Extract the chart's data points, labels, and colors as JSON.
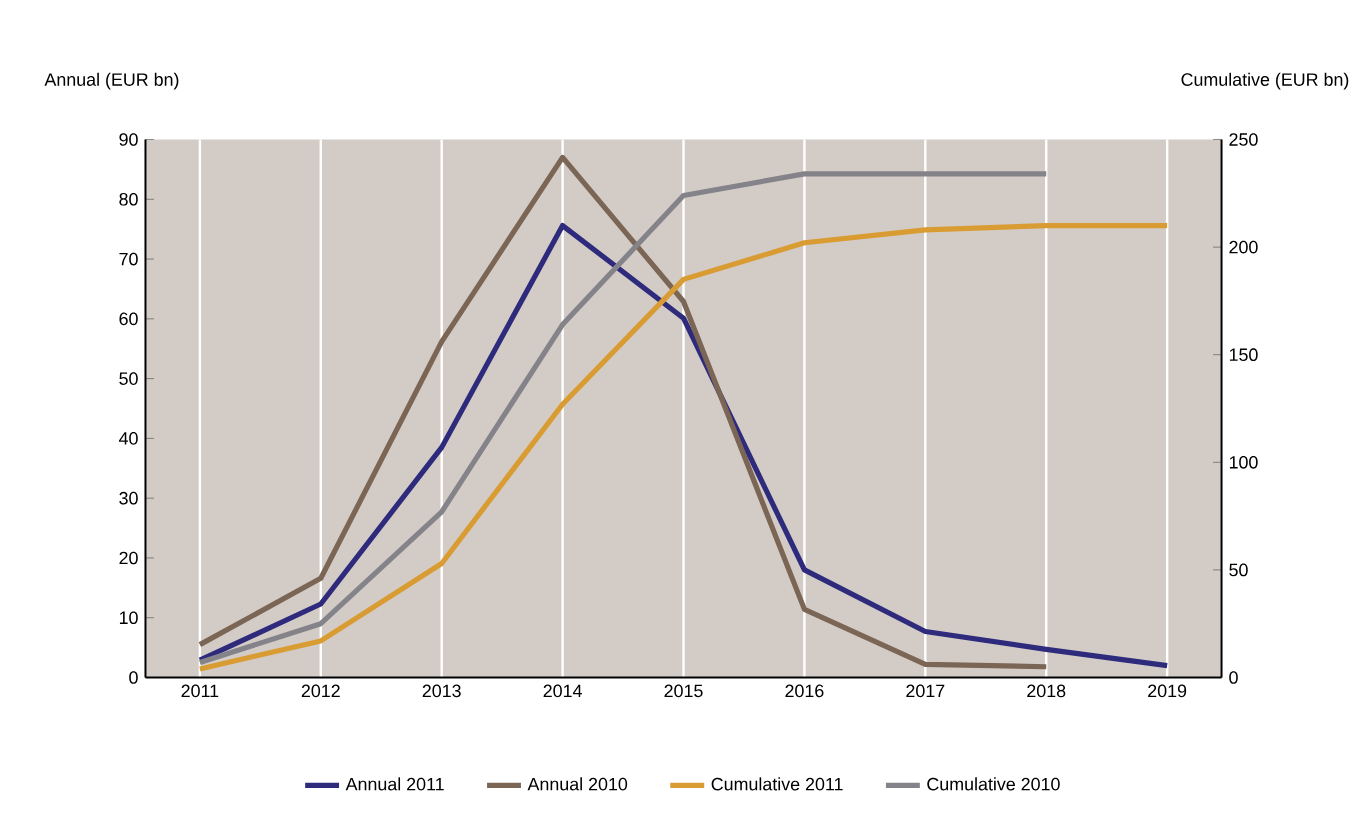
{
  "chart_data": {
    "type": "line",
    "ylabel": "Annual (EUR bn)",
    "y2label": "Cumulative (EUR bn)",
    "categories": [
      "2011",
      "2012",
      "2013",
      "2014",
      "2015",
      "2016",
      "2017",
      "2018",
      "2019"
    ],
    "series": [
      {
        "name": "Annual 2011",
        "color": "#2e2a7c",
        "values": [
          2.9,
          12.3,
          38.5,
          75.6,
          60.1,
          18,
          7.7,
          4.7,
          2
        ]
      },
      {
        "name": "Annual 2010",
        "color": "#7b6555",
        "values": [
          5.5,
          16.6,
          56.2,
          87,
          62.9,
          11.4,
          2.2,
          1.8,
          null
        ]
      },
      {
        "name": "Cumulative 2011",
        "color": "#d89c33",
        "axis": "y2",
        "values": [
          4,
          17,
          53,
          127,
          185,
          202,
          208,
          210,
          210
        ]
      },
      {
        "name": "Cumulative 2010",
        "color": "#85838a",
        "axis": "y2",
        "values": [
          7,
          25,
          77,
          164,
          224,
          234,
          234,
          234,
          null
        ]
      }
    ],
    "ylim": [
      0,
      90
    ],
    "yticks": [
      0,
      10,
      20,
      30,
      40,
      50,
      60,
      70,
      80,
      90
    ],
    "y2lim": [
      0,
      250
    ],
    "y2ticks": [
      0,
      50,
      100,
      150,
      200,
      250
    ],
    "grid": "x",
    "legend": "bottom",
    "line_style": "solid",
    "marker": "none"
  }
}
